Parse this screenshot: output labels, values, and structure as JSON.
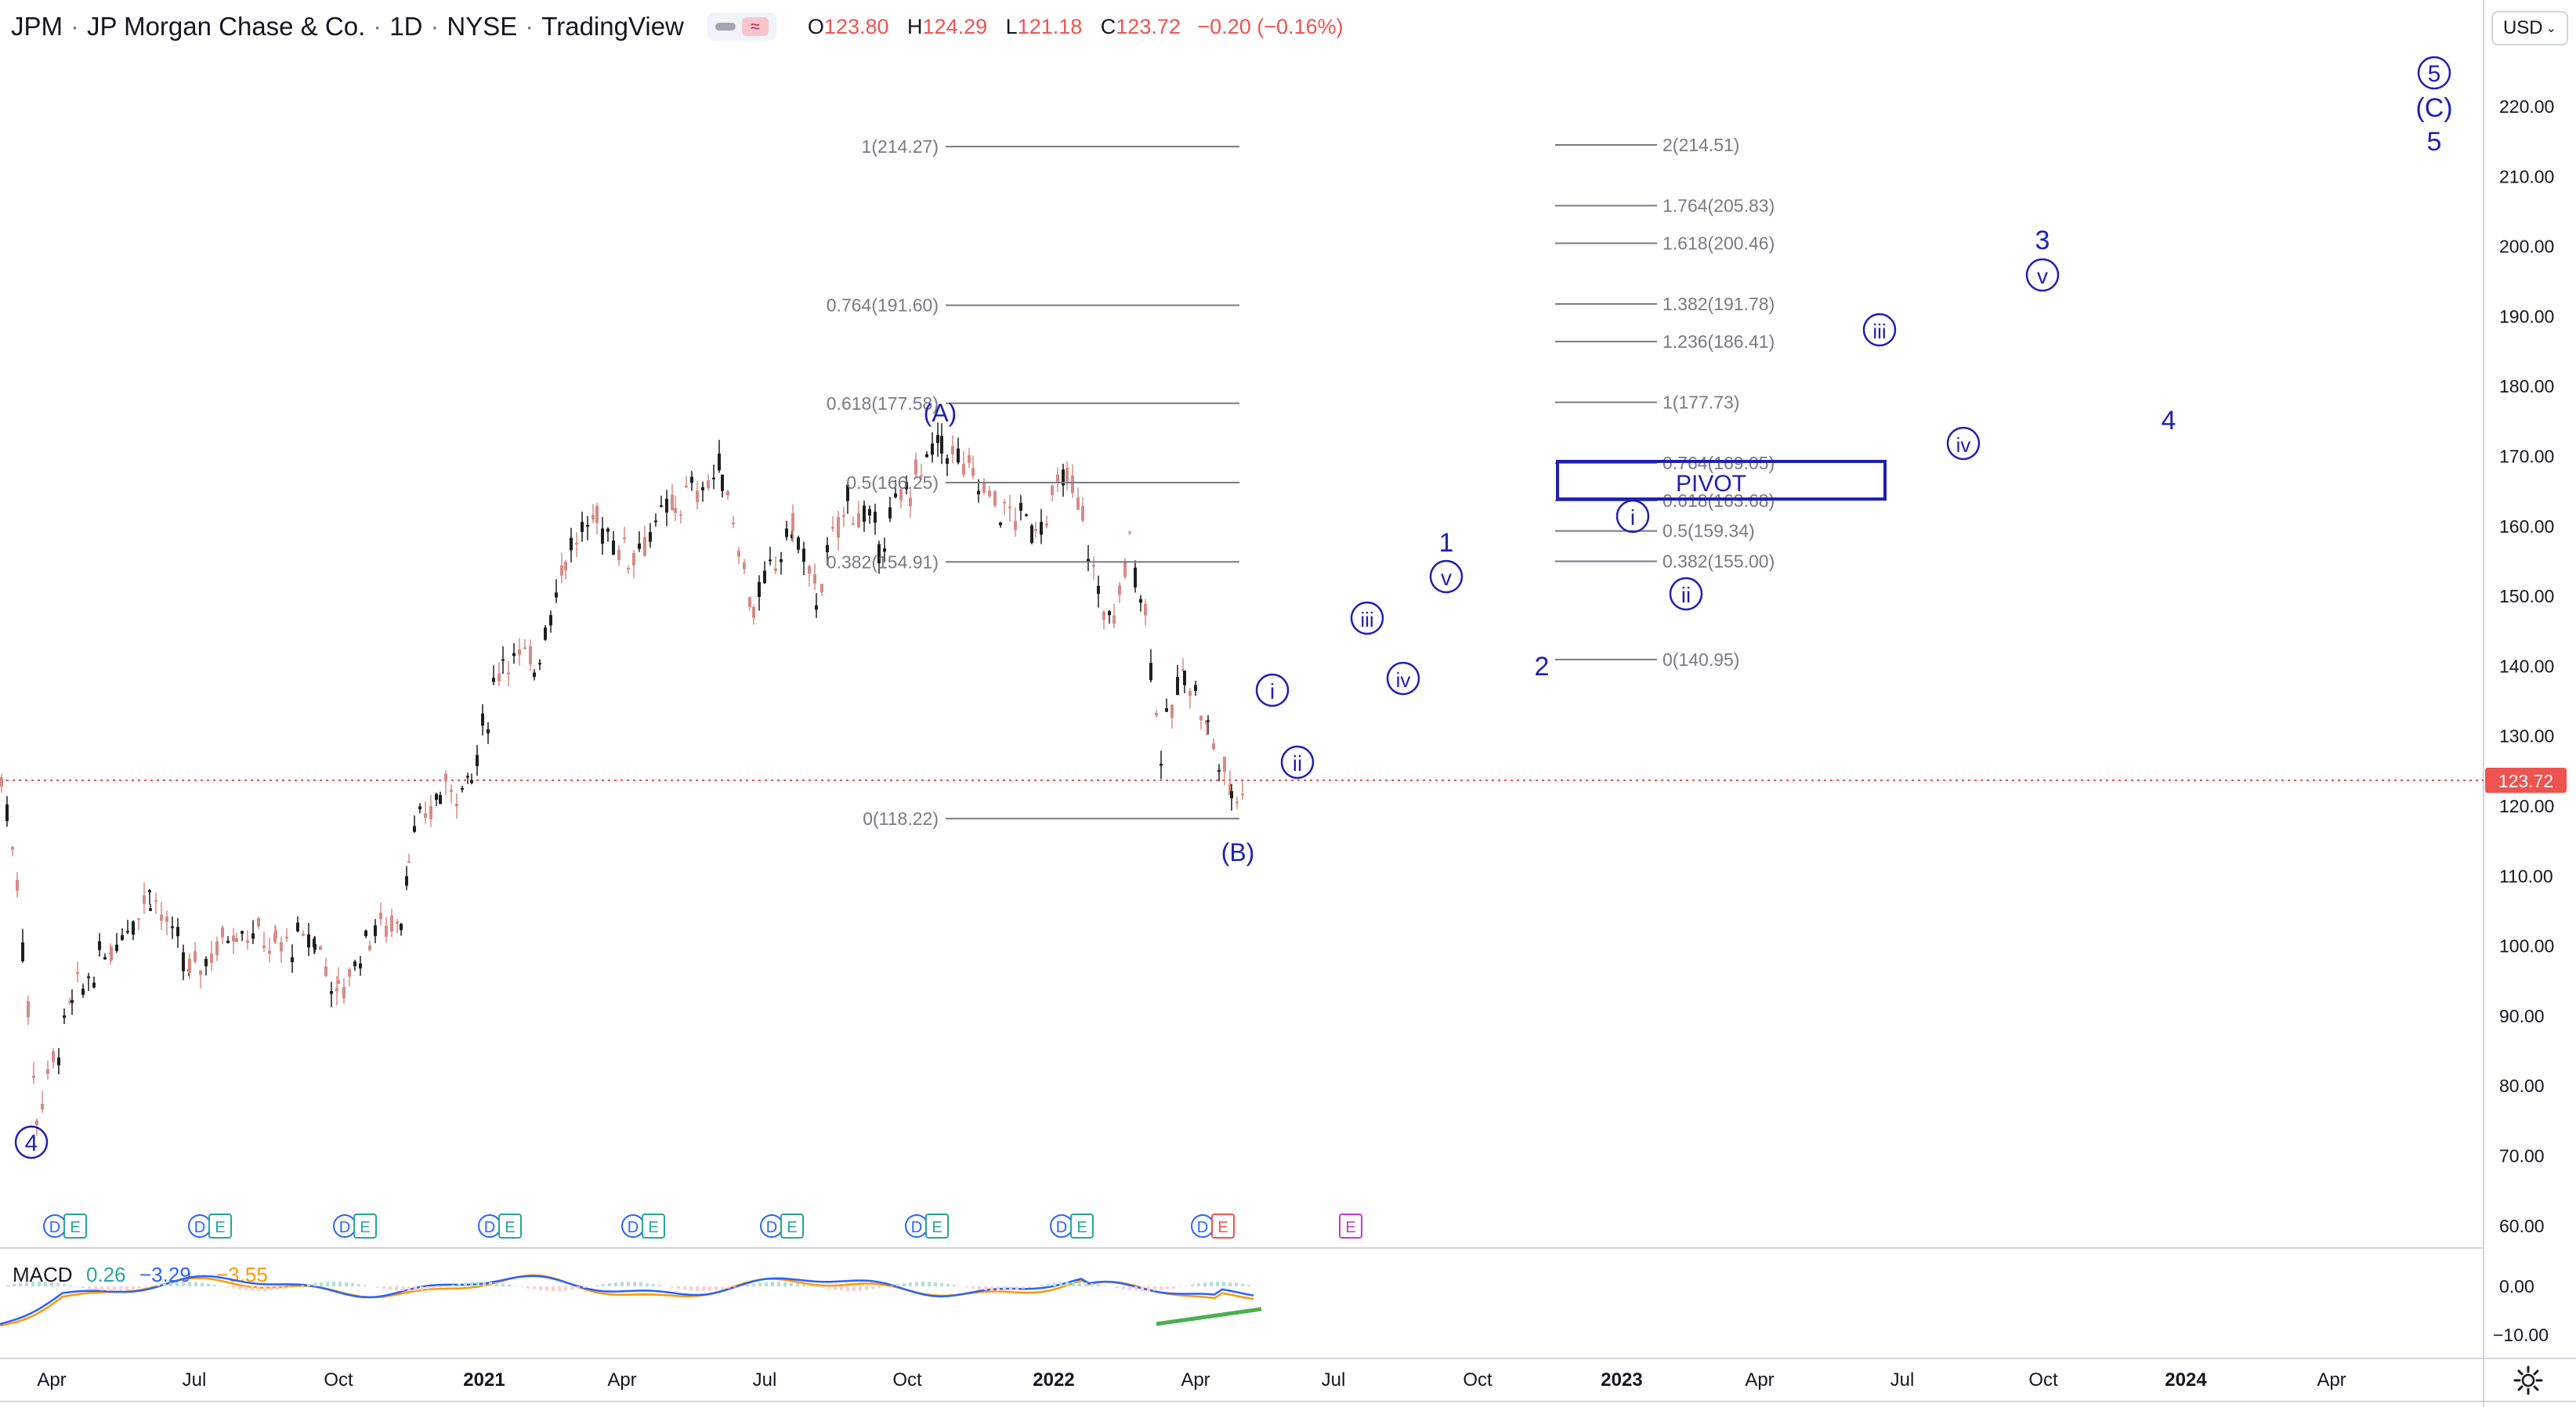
{
  "header": {
    "symbol": "JPM",
    "name": "JP Morgan Chase & Co.",
    "interval": "1D",
    "exchange": "NYSE",
    "source": "TradingView",
    "toggle_icon": "wave-icon",
    "open_label": "O",
    "open": "123.80",
    "high_label": "H",
    "high": "124.29",
    "low_label": "L",
    "low": "121.18",
    "close_label": "C",
    "close": "123.72",
    "change": "−0.20 (−0.16%)"
  },
  "currency": {
    "label": "USD"
  },
  "price_axis": {
    "ticks": [
      "220.00",
      "210.00",
      "200.00",
      "190.00",
      "180.00",
      "170.00",
      "160.00",
      "150.00",
      "140.00",
      "130.00",
      "120.00",
      "110.00",
      "100.00",
      "90.00",
      "80.00",
      "70.00",
      "60.00"
    ],
    "last_price": "123.72"
  },
  "macd": {
    "label": "MACD",
    "v1": "0.26",
    "v2": "−3.29",
    "v3": "−3.55",
    "ticks": [
      "0.00",
      "−10.00"
    ]
  },
  "time_axis": {
    "labels": [
      "Apr",
      "Jul",
      "Oct",
      "2021",
      "Apr",
      "Jul",
      "Oct",
      "2022",
      "Apr",
      "Jul",
      "Oct",
      "2023",
      "Apr",
      "Jul",
      "Oct",
      "2024",
      "Apr"
    ],
    "bold": [
      "2021",
      "2022",
      "2023",
      "2024"
    ]
  },
  "fib_left": [
    {
      "label": "1(214.27)"
    },
    {
      "label": "0.764(191.60)"
    },
    {
      "label": "0.618(177.58)"
    },
    {
      "label": "0.5(166.25)"
    },
    {
      "label": "0.382(154.91)"
    },
    {
      "label": "0(118.22)"
    }
  ],
  "fib_right": [
    {
      "label": "2(214.51)"
    },
    {
      "label": "1.764(205.83)"
    },
    {
      "label": "1.618(200.46)"
    },
    {
      "label": "1.382(191.78)"
    },
    {
      "label": "1.236(186.41)"
    },
    {
      "label": "1(177.73)"
    },
    {
      "label": "0.764(169.05)"
    },
    {
      "label": "0.618(163.68)"
    },
    {
      "label": "0.5(159.34)"
    },
    {
      "label": "0.382(155.00)"
    },
    {
      "label": "0(140.95)"
    }
  ],
  "pivot": {
    "label": "PIVOT"
  },
  "waves": {
    "w4_circ": "4",
    "A": "(A)",
    "B": "(B)",
    "C": "(C)",
    "w5_circ": "5",
    "w5": "5",
    "w1": "1",
    "w2": "2",
    "w3": "3",
    "w4": "4",
    "sub_i": "i",
    "sub_ii": "ii",
    "sub_iii": "iii",
    "sub_iv": "iv",
    "sub_v": "v"
  },
  "events": {
    "dividend": "D",
    "earnings": "E"
  },
  "colors": {
    "wave": "#1f1fb5",
    "up": "#26a69a",
    "down": "#ef5350",
    "fib": "#787b86",
    "macd": "#2962ff",
    "signal": "#ff9800",
    "divergence": "#4caf50",
    "earnings_future": "#c237d6"
  }
}
